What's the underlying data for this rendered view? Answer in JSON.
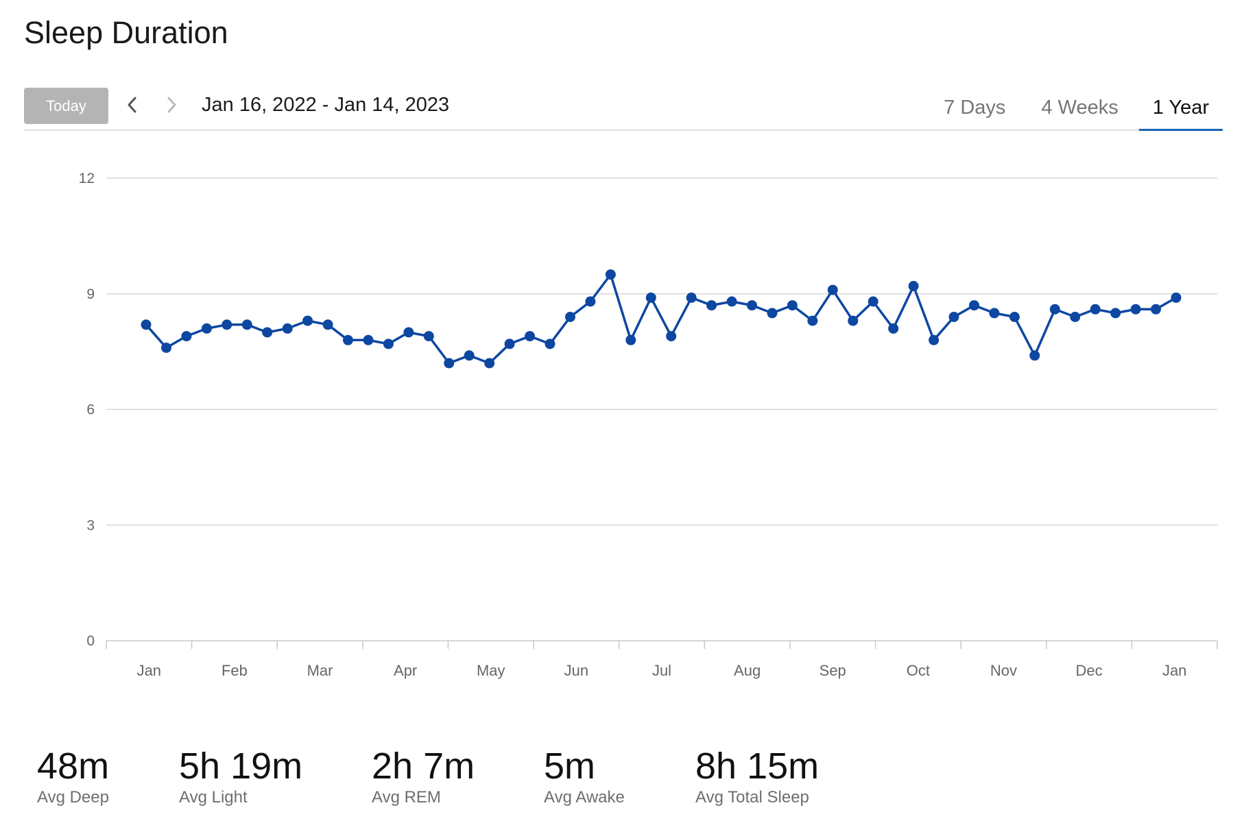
{
  "page": {
    "title": "Sleep Duration"
  },
  "toolbar": {
    "today_label": "Today",
    "prev_icon": "chevron-left-icon",
    "next_icon": "chevron-right-icon",
    "date_range": "Jan 16, 2022 - Jan 14, 2023"
  },
  "tabs": [
    {
      "label": "7 Days",
      "active": false
    },
    {
      "label": "4 Weeks",
      "active": false
    },
    {
      "label": "1 Year",
      "active": true
    }
  ],
  "colors": {
    "line": "#0d47a1",
    "grid": "#d6d6d6",
    "axis": "#c8c8c8",
    "today_button": "#b4b4b4",
    "active_tab_underline": "#1a63b8"
  },
  "chart_data": {
    "type": "line",
    "title": "",
    "xlabel": "",
    "ylabel": "",
    "ylim": [
      0,
      12
    ],
    "yticks": [
      0,
      3,
      6,
      9,
      12
    ],
    "x_tick_labels": [
      "Jan",
      "Feb",
      "Mar",
      "Apr",
      "May",
      "Jun",
      "Jul",
      "Aug",
      "Sep",
      "Oct",
      "Nov",
      "Dec",
      "Jan"
    ],
    "grid": true,
    "series": [
      {
        "values": [
          8.2,
          7.6,
          7.9,
          8.1,
          8.2,
          8.2,
          8.0,
          8.1,
          8.3,
          8.2,
          7.8,
          7.8,
          7.7,
          8.0,
          7.9,
          7.2,
          7.4,
          7.2,
          7.7,
          7.9,
          7.7,
          8.4,
          8.8,
          9.5,
          7.8,
          8.9,
          7.9,
          8.9,
          8.7,
          8.8,
          8.7,
          8.5,
          8.7,
          8.3,
          9.1,
          8.3,
          8.8,
          8.1,
          9.2,
          7.8,
          8.4,
          8.7,
          8.5,
          8.4,
          7.4,
          8.6,
          8.4,
          8.6,
          8.5,
          8.6,
          8.6,
          8.9
        ]
      }
    ]
  },
  "stats": [
    {
      "value": "48m",
      "label": "Avg Deep"
    },
    {
      "value": "5h 19m",
      "label": "Avg Light"
    },
    {
      "value": "2h 7m",
      "label": "Avg REM"
    },
    {
      "value": "5m",
      "label": "Avg Awake"
    },
    {
      "value": "8h 15m",
      "label": "Avg Total Sleep"
    }
  ]
}
